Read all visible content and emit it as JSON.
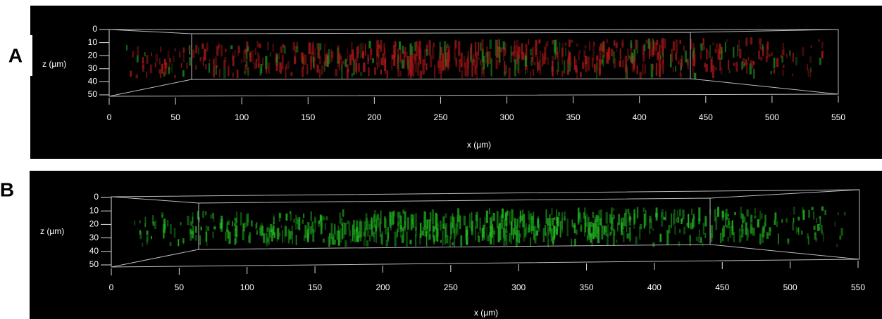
{
  "panels": [
    {
      "label": "A",
      "x_label": "x (µm)",
      "z_label": "z (µm)",
      "xlim": [
        0,
        550
      ],
      "zlim": [
        0,
        50
      ],
      "xticks": [
        0,
        50,
        100,
        150,
        200,
        250,
        300,
        350,
        400,
        450,
        500,
        550
      ],
      "zticks": [
        0,
        10,
        20,
        30,
        40,
        50
      ]
    },
    {
      "label": "B",
      "x_label": "x (µm)",
      "z_label": "z (µm)",
      "xlim": [
        0,
        550
      ],
      "zlim": [
        0,
        50
      ],
      "xticks": [
        0,
        50,
        100,
        150,
        200,
        250,
        300,
        350,
        400,
        450,
        500,
        550
      ],
      "zticks": [
        0,
        10,
        20,
        30,
        40,
        50
      ]
    }
  ]
}
